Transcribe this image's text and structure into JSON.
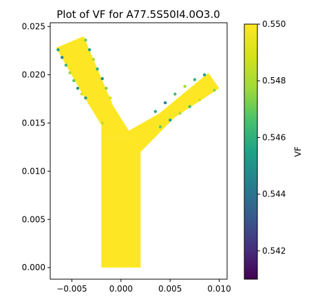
{
  "chart_data": {
    "type": "scatter",
    "title": "Plot of VF for A77.5S50I4.0O3.0",
    "xlabel": "",
    "ylabel": "",
    "xlim": [
      -0.0072,
      0.0108
    ],
    "ylim": [
      -0.0012,
      0.0254
    ],
    "x_ticks": [
      -0.005,
      0.0,
      0.005,
      0.01
    ],
    "x_tick_labels": [
      "−0.005",
      "0.000",
      "0.005",
      "0.010"
    ],
    "y_ticks": [
      0.0,
      0.005,
      0.01,
      0.015,
      0.02,
      0.025
    ],
    "y_tick_labels": [
      "0.000",
      "0.005",
      "0.010",
      "0.015",
      "0.020",
      "0.025"
    ],
    "grid": false,
    "colormap": "viridis",
    "colorbar": {
      "label": "VF",
      "range": [
        0.541,
        0.55
      ],
      "ticks": [
        0.542,
        0.544,
        0.546,
        0.548,
        0.55
      ],
      "tick_labels": [
        "0.542",
        "0.544",
        "0.546",
        "0.548",
        "0.550"
      ]
    },
    "geometry": {
      "description_values_in_data_units": true,
      "stem": {
        "x_left": -0.002,
        "x_right": 0.002,
        "y_bottom": 0.0,
        "y_top": 0.0135
      },
      "left_branch_polygon": [
        [
          -0.0066,
          0.0228
        ],
        [
          -0.0038,
          0.024
        ],
        [
          -0.0008,
          0.0168
        ],
        [
          -0.0004,
          0.0152
        ],
        [
          -0.002,
          0.0148
        ],
        [
          -0.0038,
          0.0178
        ]
      ],
      "junction_polygon": [
        [
          -0.002,
          0.0135
        ],
        [
          -0.002,
          0.0152
        ],
        [
          -0.0008,
          0.0168
        ],
        [
          0.0008,
          0.0142
        ],
        [
          0.002,
          0.0138
        ],
        [
          0.002,
          0.0135
        ]
      ],
      "right_branch_polygon": [
        [
          0.0008,
          0.0142
        ],
        [
          0.0039,
          0.016
        ],
        [
          0.0089,
          0.0202
        ],
        [
          0.01,
          0.0186
        ],
        [
          0.0055,
          0.0156
        ],
        [
          0.002,
          0.012
        ]
      ]
    },
    "edge_points": [
      {
        "x": -0.0064,
        "y": 0.0226,
        "v": 0.5455
      },
      {
        "x": -0.006,
        "y": 0.0218,
        "v": 0.5445
      },
      {
        "x": -0.0056,
        "y": 0.021,
        "v": 0.5462
      },
      {
        "x": -0.0052,
        "y": 0.0202,
        "v": 0.5478
      },
      {
        "x": -0.0048,
        "y": 0.0194,
        "v": 0.5468
      },
      {
        "x": -0.0044,
        "y": 0.0186,
        "v": 0.545
      },
      {
        "x": -0.004,
        "y": 0.018,
        "v": 0.5488
      },
      {
        "x": -0.0036,
        "y": 0.0236,
        "v": 0.547
      },
      {
        "x": -0.0032,
        "y": 0.0226,
        "v": 0.5455
      },
      {
        "x": -0.0028,
        "y": 0.0216,
        "v": 0.548
      },
      {
        "x": -0.0024,
        "y": 0.0206,
        "v": 0.546
      },
      {
        "x": -0.0019,
        "y": 0.0196,
        "v": 0.5447
      },
      {
        "x": -0.0015,
        "y": 0.0186,
        "v": 0.5475
      },
      {
        "x": -0.0011,
        "y": 0.0176,
        "v": 0.549
      },
      {
        "x": 0.0035,
        "y": 0.0162,
        "v": 0.5458
      },
      {
        "x": 0.0045,
        "y": 0.0171,
        "v": 0.5446
      },
      {
        "x": 0.0055,
        "y": 0.018,
        "v": 0.5465
      },
      {
        "x": 0.0065,
        "y": 0.0188,
        "v": 0.5478
      },
      {
        "x": 0.0075,
        "y": 0.0195,
        "v": 0.546
      },
      {
        "x": 0.0085,
        "y": 0.02,
        "v": 0.5452
      },
      {
        "x": 0.004,
        "y": 0.0146,
        "v": 0.547
      },
      {
        "x": 0.005,
        "y": 0.0153,
        "v": 0.5456
      },
      {
        "x": 0.006,
        "y": 0.016,
        "v": 0.548
      },
      {
        "x": 0.007,
        "y": 0.0167,
        "v": 0.5465
      },
      {
        "x": 0.008,
        "y": 0.0174,
        "v": 0.549
      },
      {
        "x": 0.0095,
        "y": 0.0184,
        "v": 0.5475
      },
      {
        "x": -0.0019,
        "y": 0.015,
        "v": 0.5485
      },
      {
        "x": -0.0036,
        "y": 0.0176,
        "v": 0.5452
      }
    ],
    "bulk_value": 0.55
  }
}
